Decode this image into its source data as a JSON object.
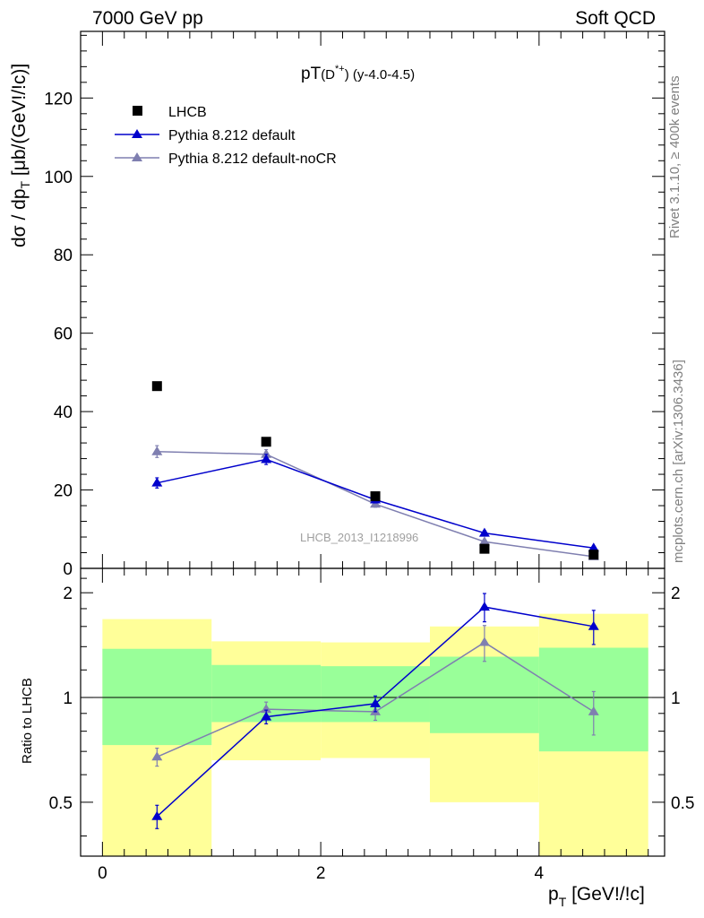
{
  "header": {
    "left": "7000 GeV pp",
    "right": "Soft QCD"
  },
  "side_text": {
    "rivet": "Rivet 3.1.10, ≥ 400k events",
    "mcplots": "mcplots.cern.ch [arXiv:1306.3436]"
  },
  "chart_data": [
    {
      "type": "scatter",
      "title": "pT(D*+) (y-4.0-4.5)",
      "title_main": "pT",
      "title_paren": "(D",
      "title_sup": "*+",
      "title_tail": ") (y-4.0-4.5)",
      "ylabel": "dσ / dp_T [μb/(GeV!/!c)]",
      "ylabel_main": "dσ / dp",
      "ylabel_sub": "T",
      "ylabel_unit": " [μb/(GeV!/!c)]",
      "xlim": [
        -0.2,
        5.15
      ],
      "ylim": [
        0,
        137
      ],
      "yticks": [
        0,
        20,
        40,
        60,
        80,
        100,
        120
      ],
      "watermark": "LHCB_2013_I1218996",
      "legend_position": "top-left",
      "series": [
        {
          "name": "LHCB",
          "color": "#000000",
          "marker": "square",
          "x": [
            0.5,
            1.5,
            2.5,
            3.5,
            4.5
          ],
          "y": [
            46.5,
            32.3,
            18.4,
            5.0,
            3.5
          ]
        },
        {
          "name": "Pythia 8.212 default",
          "color": "#0000cc",
          "marker": "triangle",
          "x": [
            0.5,
            1.5,
            2.5,
            3.5,
            4.5
          ],
          "y": [
            21.8,
            27.8,
            17.5,
            9.0,
            5.2
          ],
          "yerr": [
            1.3,
            1.3,
            0.8,
            0.6,
            0.4
          ]
        },
        {
          "name": "Pythia 8.212 default-noCR",
          "color": "#7f7fb0",
          "marker": "triangle",
          "x": [
            0.5,
            1.5,
            2.5,
            3.5,
            4.5
          ],
          "y": [
            29.8,
            29.1,
            16.4,
            6.8,
            3.0
          ],
          "yerr": [
            1.5,
            1.2,
            0.8,
            0.5,
            0.3
          ]
        }
      ]
    },
    {
      "type": "scatter",
      "title": "",
      "xlabel": "p_T [GeV!/!c]",
      "xlabel_main": "p",
      "xlabel_sub": "T",
      "xlabel_unit": " [GeV!/!c]",
      "ylabel": "Ratio to LHCB",
      "xlim": [
        -0.2,
        5.15
      ],
      "ylim": [
        0.35,
        2.35
      ],
      "ylog": true,
      "yticks": [
        0.5,
        1,
        2
      ],
      "xticks": [
        0,
        2,
        4
      ],
      "reference_line": 1,
      "bands": [
        {
          "x0": 0,
          "x1": 1,
          "yellow": [
            0.35,
            1.68
          ],
          "green": [
            0.73,
            1.38
          ]
        },
        {
          "x0": 1,
          "x1": 2,
          "yellow": [
            0.66,
            1.45
          ],
          "green": [
            0.85,
            1.24
          ]
        },
        {
          "x0": 2,
          "x1": 3,
          "yellow": [
            0.67,
            1.44
          ],
          "green": [
            0.85,
            1.23
          ]
        },
        {
          "x0": 3,
          "x1": 4,
          "yellow": [
            0.5,
            1.6
          ],
          "green": [
            0.79,
            1.31
          ]
        },
        {
          "x0": 4,
          "x1": 5,
          "yellow": [
            0.35,
            1.74
          ],
          "green": [
            0.7,
            1.39
          ]
        }
      ],
      "series": [
        {
          "name": "Pythia 8.212 default",
          "color": "#0000cc",
          "x": [
            0.5,
            1.5,
            2.5,
            3.5,
            4.5
          ],
          "y": [
            0.455,
            0.88,
            0.96,
            1.82,
            1.6
          ],
          "yerr": [
            0.035,
            0.04,
            0.05,
            0.17,
            0.18
          ]
        },
        {
          "name": "Pythia 8.212 default-noCR",
          "color": "#7f7fb0",
          "x": [
            0.5,
            1.5,
            2.5,
            3.5,
            4.5
          ],
          "y": [
            0.675,
            0.925,
            0.91,
            1.44,
            0.91
          ],
          "yerr": [
            0.04,
            0.045,
            0.05,
            0.17,
            0.13
          ]
        }
      ]
    }
  ]
}
